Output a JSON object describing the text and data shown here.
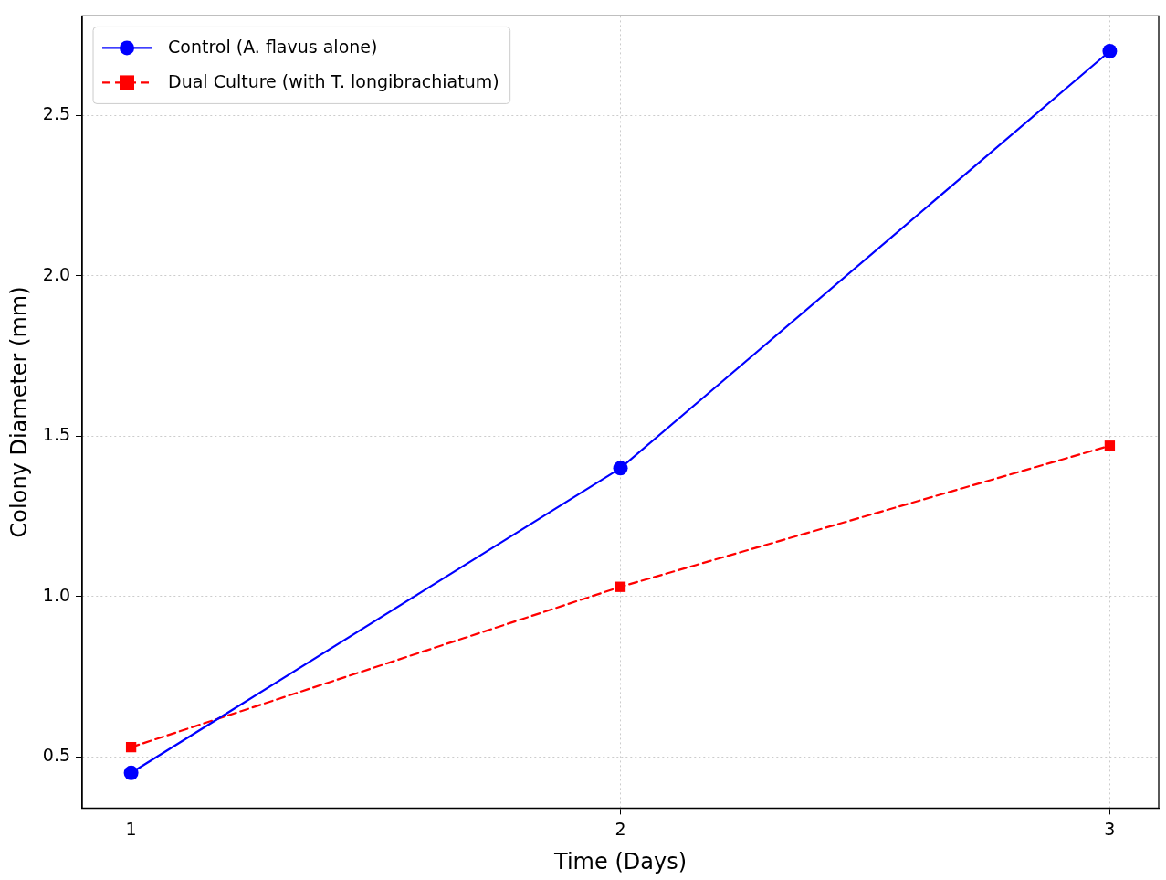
{
  "chart_data": {
    "type": "line",
    "xlabel": "Time (Days)",
    "ylabel": "Colony Diameter (mm)",
    "x": [
      1,
      2,
      3
    ],
    "series": [
      {
        "name": "Control (A. flavus alone)",
        "color": "#0000ff",
        "values": [
          0.45,
          1.4,
          2.7
        ],
        "marker": "circle",
        "line_style": "solid"
      },
      {
        "name": "Dual Culture (with T. longibrachiatum)",
        "color": "#ff0000",
        "values": [
          0.53,
          1.03,
          1.47
        ],
        "marker": "square",
        "line_style": "dashed"
      }
    ],
    "xlim": [
      0.9,
      3.1
    ],
    "xticks": [
      1,
      2,
      3
    ],
    "ylim": [
      0.34,
      2.81
    ],
    "yticks": [
      0.5,
      {
        "value": 1,
        "label": "1.0"
      },
      1.5,
      {
        "value": 2,
        "label": "2.0"
      },
      2.5
    ],
    "grid": true,
    "legend": "top left"
  }
}
